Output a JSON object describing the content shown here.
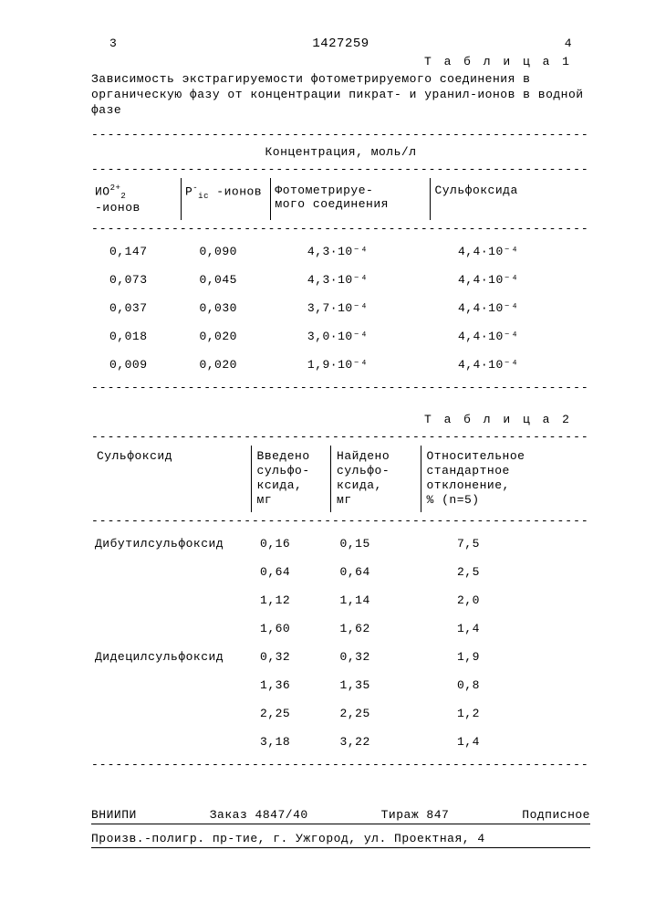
{
  "page": {
    "left_num": "3",
    "doc_num": "1427259",
    "right_num": "4"
  },
  "table1": {
    "label": "Т а б л и ц а 1",
    "caption": "Зависимость экстрагируемости фотометрируемого соединения в органическую фазу от концентрации пикрат- и уранил-ионов в водной фазе",
    "group_header": "Концентрация, моль/л",
    "headers": {
      "c1a": "ИО",
      "c1b": "2+",
      "c1c": "2",
      "c1d": " -ионов",
      "c2a": "Р",
      "c2b": "-",
      "c2c": "ic",
      "c2d": " -ионов",
      "c3": "Фотометрируе-\nмого соединения",
      "c4": "Сульфоксида"
    },
    "rows": [
      {
        "c1": "0,147",
        "c2": "0,090",
        "c3": "4,3·10⁻⁴",
        "c4": "4,4·10⁻⁴"
      },
      {
        "c1": "0,073",
        "c2": "0,045",
        "c3": "4,3·10⁻⁴",
        "c4": "4,4·10⁻⁴"
      },
      {
        "c1": "0,037",
        "c2": "0,030",
        "c3": "3,7·10⁻⁴",
        "c4": "4,4·10⁻⁴"
      },
      {
        "c1": "0,018",
        "c2": "0,020",
        "c3": "3,0·10⁻⁴",
        "c4": "4,4·10⁻⁴"
      },
      {
        "c1": "0,009",
        "c2": "0,020",
        "c3": "1,9·10⁻⁴",
        "c4": "4,4·10⁻⁴"
      }
    ]
  },
  "table2": {
    "label": "Т а б л и ц а 2",
    "headers": {
      "c1": "Сульфоксид",
      "c2": "Введено\nсульфо-\nксида,\nмг",
      "c3": "Найдено\nсульфо-\nксида,\nмг",
      "c4": "Относительное\nстандартное\nотклонение,\n%   (n=5)"
    },
    "rows": [
      {
        "c1": "Дибутилсульфоксид",
        "c2": "0,16",
        "c3": "0,15",
        "c4": "7,5"
      },
      {
        "c1": "",
        "c2": "0,64",
        "c3": "0,64",
        "c4": "2,5"
      },
      {
        "c1": "",
        "c2": "1,12",
        "c3": "1,14",
        "c4": "2,0"
      },
      {
        "c1": "",
        "c2": "1,60",
        "c3": "1,62",
        "c4": "1,4"
      },
      {
        "c1": "Дидецилсульфоксид",
        "c2": "0,32",
        "c3": "0,32",
        "c4": "1,9"
      },
      {
        "c1": "",
        "c2": "1,36",
        "c3": "1,35",
        "c4": "0,8"
      },
      {
        "c1": "",
        "c2": "2,25",
        "c3": "2,25",
        "c4": "1,2"
      },
      {
        "c1": "",
        "c2": "3,18",
        "c3": "3,22",
        "c4": "1,4"
      }
    ]
  },
  "footer": {
    "org": "ВНИИПИ",
    "order": "Заказ 4847/40",
    "tirazh": "Тираж 847",
    "sub": "Подписное",
    "address": "Произв.-полигр. пр-тие, г. Ужгород, ул. Проектная, 4"
  },
  "dash": "---------------------------------------------------------------"
}
